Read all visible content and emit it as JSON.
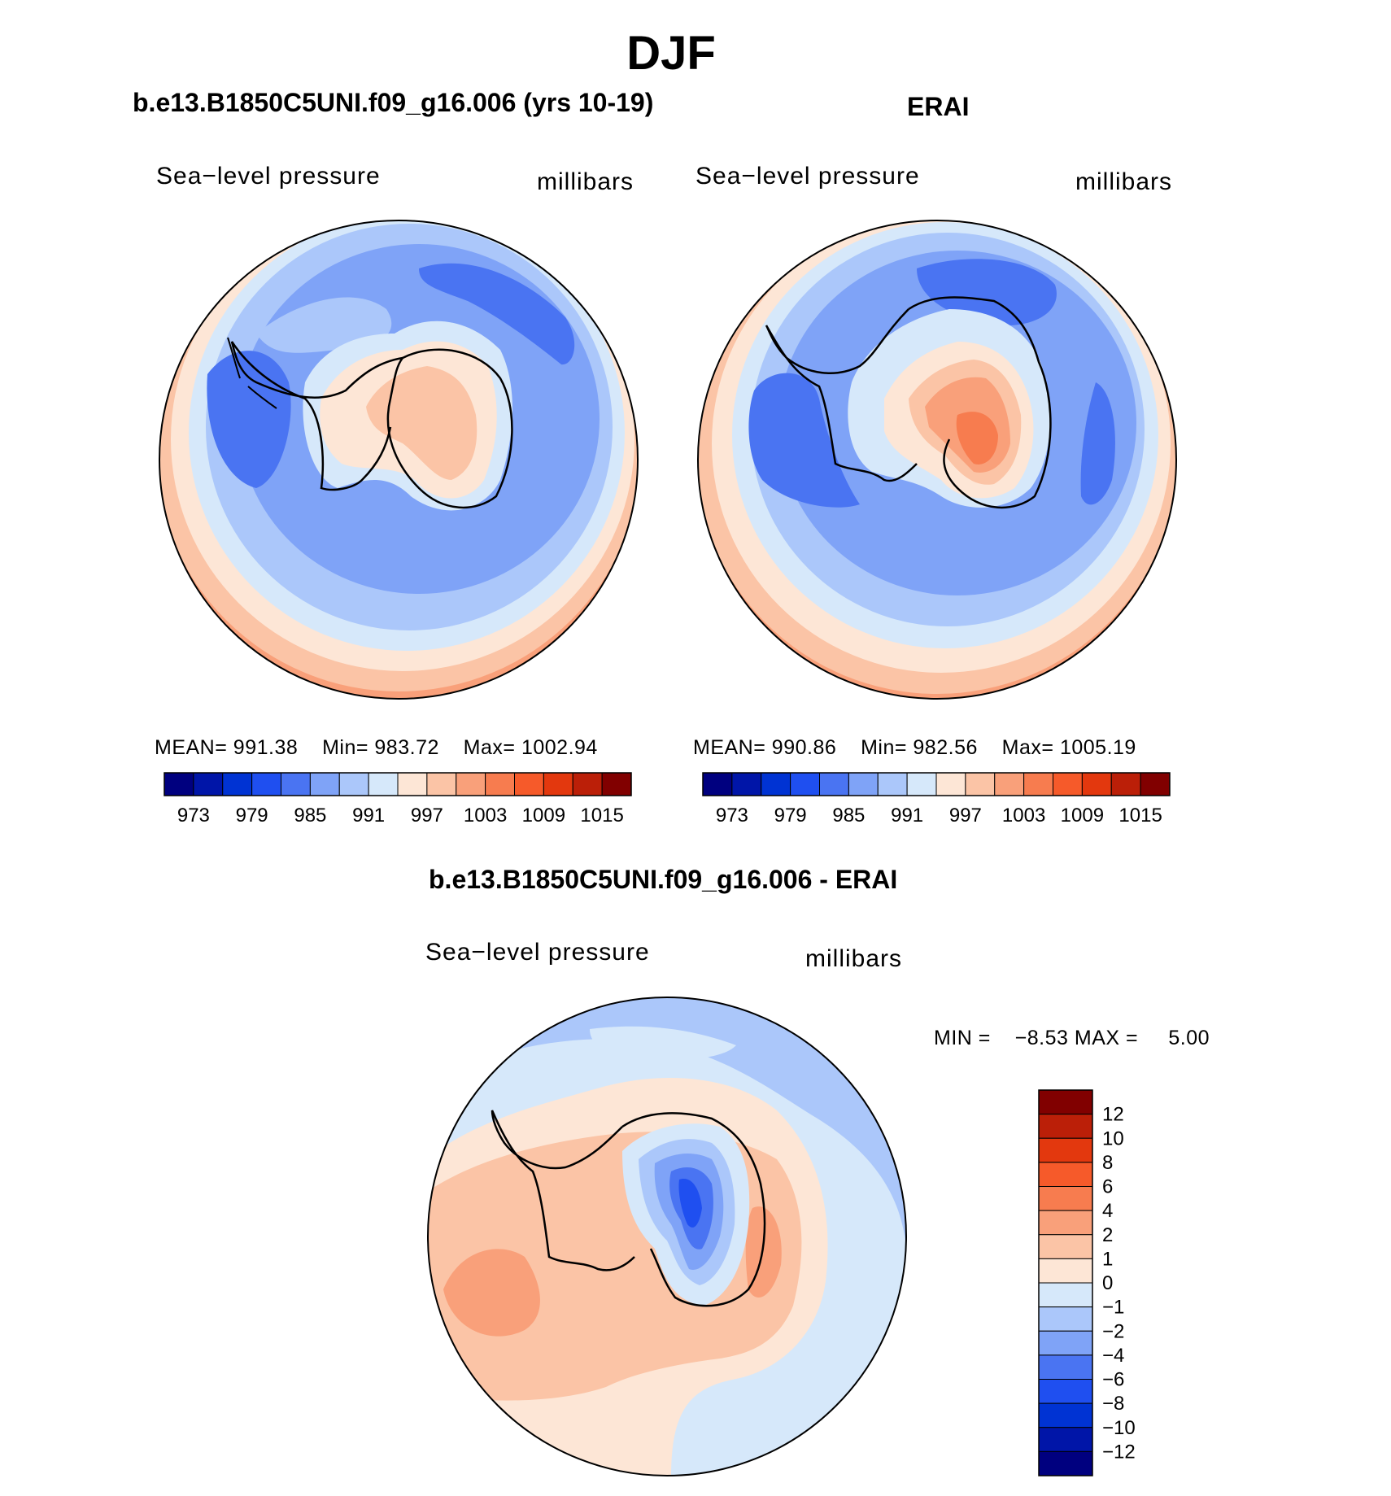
{
  "title": "DJF",
  "panels": [
    {
      "title": "b.e13.B1850C5UNI.f09_g16.006 (yrs 10-19)",
      "variable": "Sea−level pressure",
      "units": "millibars",
      "stats": {
        "mean_label": "MEAN=",
        "mean": "991.38",
        "min_label": "Min=",
        "min": "983.72",
        "max_label": "Max=",
        "max": "1002.94"
      }
    },
    {
      "title": "ERAI",
      "variable": "Sea−level pressure",
      "units": "millibars",
      "stats": {
        "mean_label": "MEAN=",
        "mean": "990.86",
        "min_label": "Min=",
        "min": "982.56",
        "max_label": "Max=",
        "max": "1005.19"
      }
    },
    {
      "title": "b.e13.B1850C5UNI.f09_g16.006 - ERAI",
      "variable": "Sea−level pressure",
      "units": "millibars",
      "stats": {
        "min_label": "MIN =",
        "min": "−8.53",
        "max_label": "MAX =",
        "max": "5.00"
      }
    }
  ],
  "colorbar_abs": {
    "colors": [
      "#00007f",
      "#0015a8",
      "#0033d3",
      "#1f4ff0",
      "#4a74f2",
      "#7fa3f7",
      "#abc7fa",
      "#d6e8fa",
      "#fde6d6",
      "#fbc4a6",
      "#f9a07a",
      "#f77c4f",
      "#f65a2a",
      "#e3380e",
      "#bb1f08",
      "#810000"
    ],
    "labels": [
      "973",
      "979",
      "985",
      "991",
      "997",
      "1003",
      "1009",
      "1015"
    ]
  },
  "colorbar_diff": {
    "colors": [
      "#00007f",
      "#0015a8",
      "#0033d3",
      "#1f4ff0",
      "#4a74f2",
      "#7fa3f7",
      "#abc7fa",
      "#d6e8fa",
      "#fde6d6",
      "#fbc4a6",
      "#f9a07a",
      "#f77c4f",
      "#f65a2a",
      "#e3380e",
      "#bb1f08",
      "#810000"
    ],
    "labels": [
      "12",
      "10",
      "8",
      "6",
      "4",
      "2",
      "1",
      "0",
      "−1",
      "−2",
      "−4",
      "−6",
      "−8",
      "−10",
      "−12"
    ]
  },
  "maps": [
    {
      "name": "model",
      "rings": [
        "#fbc4a6",
        "#fde6d6",
        "#d6e8fa",
        "#abc7fa",
        "#7fa3f7"
      ],
      "lows": [
        "#4a74f2"
      ],
      "land": [
        "#d6e8fa",
        "#fde6d6",
        "#fbc4a6"
      ]
    },
    {
      "name": "erai",
      "rings": [
        "#fbc4a6",
        "#fde6d6",
        "#d6e8fa",
        "#abc7fa",
        "#7fa3f7"
      ],
      "lows": [
        "#4a74f2"
      ],
      "land": [
        "#d6e8fa",
        "#fde6d6",
        "#fbc4a6",
        "#f9a07a"
      ]
    },
    {
      "name": "diff",
      "rings": [
        "#d6e8fa",
        "#fde6d6",
        "#fbc4a6"
      ],
      "lows": [
        "#f9a07a",
        "#abc7fa"
      ],
      "land": [
        "#d6e8fa",
        "#abc7fa",
        "#7fa3f7",
        "#4a74f2",
        "#1f4ff0"
      ]
    }
  ]
}
